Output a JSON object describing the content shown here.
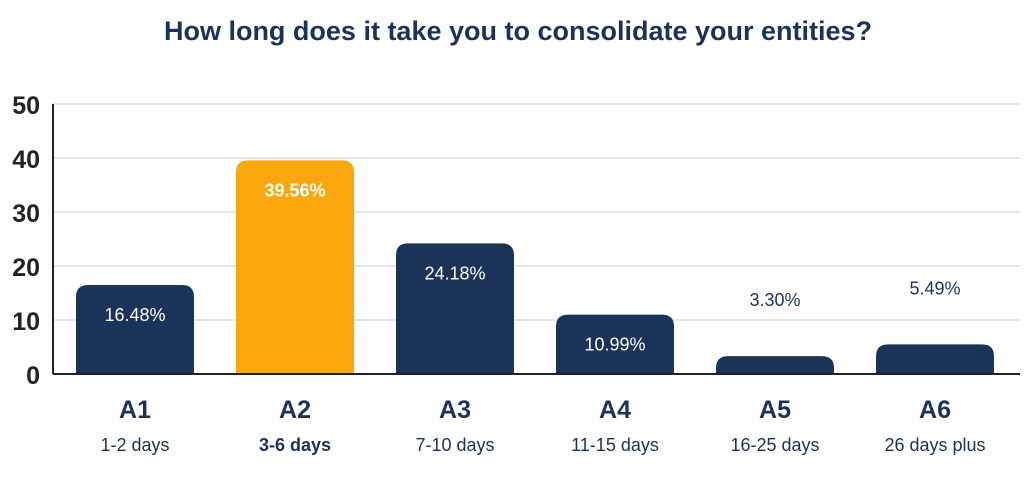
{
  "chart_data": {
    "type": "bar",
    "title": "How long does it take you to consolidate your entities?",
    "categories": [
      "A1",
      "A2",
      "A3",
      "A4",
      "A5",
      "A6"
    ],
    "sublabels": [
      "1-2 days",
      "3-6 days",
      "7-10 days",
      "11-15 days",
      "16-25 days",
      "26 days plus"
    ],
    "values": [
      16.48,
      39.56,
      24.18,
      10.99,
      3.3,
      5.49
    ],
    "value_labels": [
      "16.48%",
      "39.56%",
      "24.18%",
      "10.99%",
      "3.30%",
      "5.49%"
    ],
    "highlight_index": 1,
    "ylim": [
      0,
      50
    ],
    "yticks": [
      0,
      10,
      20,
      30,
      40,
      50
    ],
    "ytick_labels": [
      "0",
      "10",
      "20",
      "30",
      "40",
      "50"
    ],
    "grid": true,
    "xlabel": "",
    "ylabel": "",
    "colors": {
      "bar": "#1b3358",
      "highlight": "#fba70e",
      "text": "#1b3358",
      "grid": "#dddddd",
      "axis": "#222222",
      "label_inside": "#ffffff"
    }
  }
}
